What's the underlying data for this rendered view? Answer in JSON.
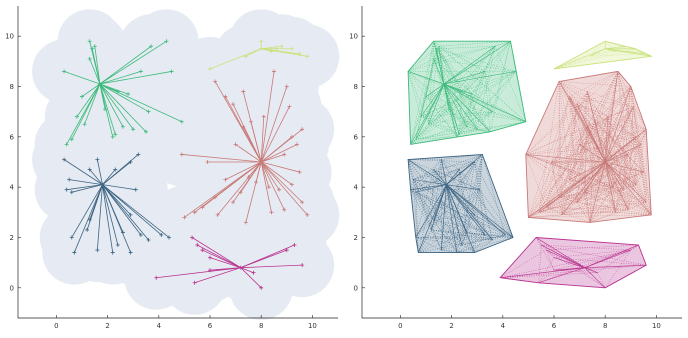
{
  "chart_data": [
    {
      "type": "scatter",
      "subtype": "clustered spanning trees over shaded coverage region",
      "title": "",
      "xlabel": "",
      "ylabel": "",
      "xlim": [
        -1.5,
        11
      ],
      "ylim": [
        -1.2,
        11.2
      ],
      "xticks": [
        "0",
        "2",
        "4",
        "6",
        "8",
        "10"
      ],
      "yticks": [
        "0",
        "2",
        "4",
        "6",
        "8",
        "10"
      ],
      "grid": false,
      "legend": "none",
      "background_region_color": "#e6ebf3",
      "series": [
        {
          "color": "#3cba7a",
          "hub": [
            1.7,
            8.1
          ],
          "points": [
            [
              1.3,
              9.8
            ],
            [
              1.4,
              9.5
            ],
            [
              1.5,
              9.6
            ],
            [
              1.3,
              9.1
            ],
            [
              0.3,
              8.6
            ],
            [
              0.4,
              5.7
            ],
            [
              0.6,
              5.9
            ],
            [
              0.8,
              6.8
            ],
            [
              1.0,
              7.6
            ],
            [
              1.1,
              6.5
            ],
            [
              1.9,
              7.1
            ],
            [
              2.4,
              7.8
            ],
            [
              2.3,
              6.1
            ],
            [
              2.6,
              6.4
            ],
            [
              2.8,
              7.7
            ],
            [
              3.0,
              6.3
            ],
            [
              3.5,
              6.2
            ],
            [
              3.3,
              8.6
            ],
            [
              3.7,
              9.6
            ],
            [
              4.3,
              9.8
            ],
            [
              4.5,
              8.6
            ],
            [
              4.9,
              6.6
            ],
            [
              3.6,
              7.0
            ],
            [
              2.2,
              6.0
            ]
          ]
        },
        {
          "color": "#3d6482",
          "hub": [
            1.8,
            4.1
          ],
          "points": [
            [
              0.3,
              5.1
            ],
            [
              0.5,
              4.3
            ],
            [
              0.4,
              3.9
            ],
            [
              0.6,
              3.8
            ],
            [
              1.3,
              4.7
            ],
            [
              1.6,
              5.1
            ],
            [
              2.3,
              4.7
            ],
            [
              2.9,
              5.0
            ],
            [
              3.2,
              5.3
            ],
            [
              0.6,
              2.0
            ],
            [
              0.7,
              1.4
            ],
            [
              1.2,
              2.3
            ],
            [
              1.6,
              1.5
            ],
            [
              2.2,
              1.4
            ],
            [
              2.4,
              1.7
            ],
            [
              2.9,
              2.9
            ],
            [
              3.3,
              2.1
            ],
            [
              2.9,
              1.4
            ],
            [
              3.6,
              1.9
            ],
            [
              4.1,
              2.1
            ],
            [
              4.4,
              2.0
            ],
            [
              3.1,
              3.9
            ],
            [
              1.3,
              2.7
            ],
            [
              2.6,
              2.2
            ]
          ]
        },
        {
          "color": "#c87a78",
          "hub": [
            8.0,
            5.0
          ],
          "points": [
            [
              6.2,
              8.2
            ],
            [
              6.6,
              7.6
            ],
            [
              6.9,
              7.3
            ],
            [
              7.3,
              7.8
            ],
            [
              7.6,
              6.6
            ],
            [
              8.1,
              6.8
            ],
            [
              8.5,
              8.6
            ],
            [
              9.0,
              8.0
            ],
            [
              9.1,
              7.2
            ],
            [
              9.2,
              6.0
            ],
            [
              9.4,
              5.7
            ],
            [
              9.6,
              6.3
            ],
            [
              9.2,
              4.1
            ],
            [
              9.5,
              4.6
            ],
            [
              9.6,
              3.4
            ],
            [
              9.8,
              2.9
            ],
            [
              8.7,
              3.9
            ],
            [
              8.9,
              3.1
            ],
            [
              8.4,
              3.0
            ],
            [
              7.8,
              4.2
            ],
            [
              7.5,
              4.4
            ],
            [
              7.4,
              2.6
            ],
            [
              6.9,
              3.4
            ],
            [
              6.2,
              3.6
            ],
            [
              5.7,
              3.2
            ],
            [
              5.4,
              3.0
            ],
            [
              5.0,
              2.8
            ],
            [
              4.9,
              5.3
            ],
            [
              5.9,
              5.0
            ],
            [
              6.6,
              4.3
            ],
            [
              7.2,
              3.8
            ],
            [
              6.3,
              2.9
            ],
            [
              7.0,
              5.7
            ],
            [
              7.3,
              6.4
            ],
            [
              8.3,
              4.0
            ],
            [
              8.9,
              5.3
            ]
          ]
        },
        {
          "color": "#c9e27a",
          "hub": [
            8.0,
            9.5
          ],
          "points": [
            [
              6.0,
              8.7
            ],
            [
              7.4,
              9.2
            ],
            [
              8.0,
              9.8
            ],
            [
              8.4,
              9.4
            ],
            [
              8.8,
              9.6
            ],
            [
              9.2,
              9.5
            ],
            [
              9.5,
              9.3
            ],
            [
              9.8,
              9.2
            ],
            [
              8.6,
              9.5
            ]
          ]
        },
        {
          "color": "#b8338f",
          "hub": [
            7.2,
            0.8
          ],
          "points": [
            [
              3.9,
              0.4
            ],
            [
              5.3,
              2.0
            ],
            [
              5.5,
              1.7
            ],
            [
              5.7,
              1.5
            ],
            [
              6.0,
              1.2
            ],
            [
              5.4,
              0.2
            ],
            [
              6.0,
              0.7
            ],
            [
              7.7,
              0.6
            ],
            [
              8.0,
              0.0
            ],
            [
              9.0,
              1.5
            ],
            [
              9.3,
              1.7
            ],
            [
              9.6,
              0.9
            ]
          ]
        }
      ]
    },
    {
      "type": "scatter",
      "subtype": "clusters with dense dotted connections and convex-hull fill",
      "title": "",
      "xlabel": "",
      "ylabel": "",
      "xlim": [
        -1.5,
        11
      ],
      "ylim": [
        -1.2,
        11.2
      ],
      "xticks": [
        "0",
        "2",
        "4",
        "6",
        "8",
        "10"
      ],
      "yticks": [
        "0",
        "2",
        "4",
        "6",
        "8",
        "10"
      ],
      "grid": false,
      "legend": "none",
      "series": [
        {
          "color": "#3cba7a",
          "same_points_as": "left panel cluster 1"
        },
        {
          "color": "#3d6482",
          "same_points_as": "left panel cluster 2"
        },
        {
          "color": "#c87a78",
          "same_points_as": "left panel cluster 3"
        },
        {
          "color": "#c9e27a",
          "same_points_as": "left panel cluster 4"
        },
        {
          "color": "#b8338f",
          "same_points_as": "left panel cluster 5"
        }
      ]
    }
  ]
}
